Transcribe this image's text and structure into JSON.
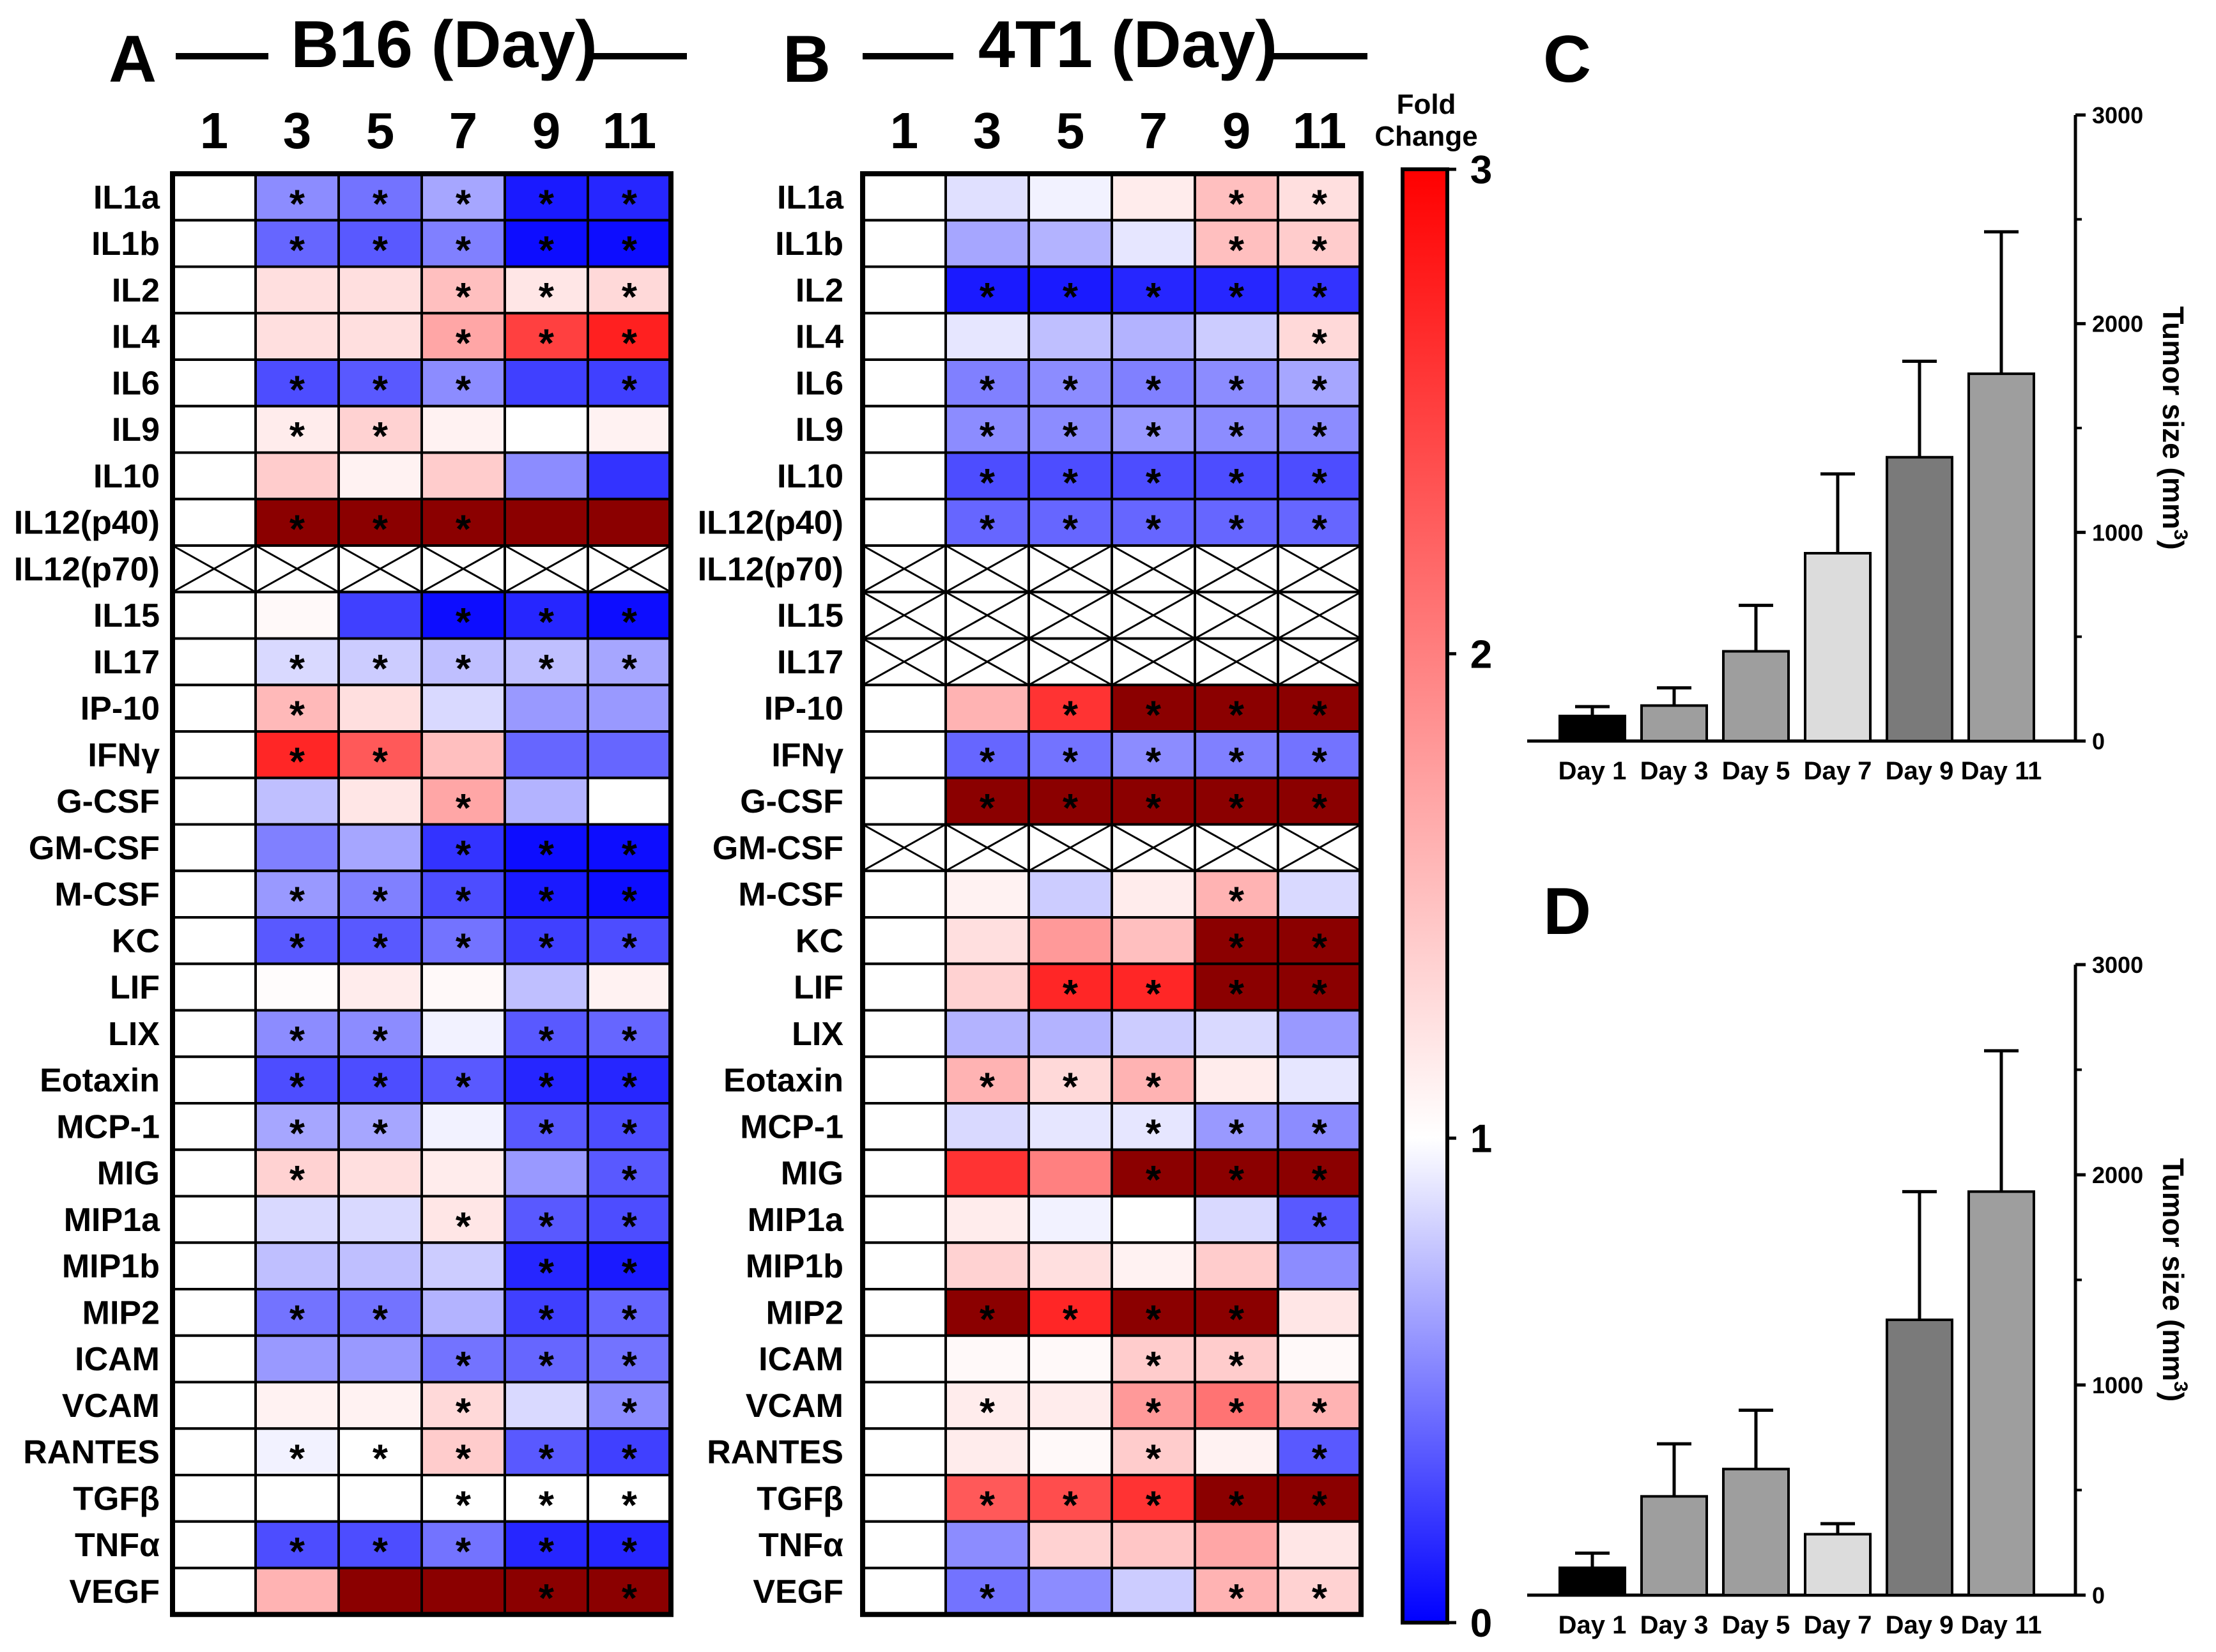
{
  "chart_data": [
    {
      "type": "heatmap",
      "panel": "A",
      "title": "B16 (Day)",
      "columns": [
        "1",
        "3",
        "5",
        "7",
        "9",
        "11"
      ],
      "rows": [
        "IL1a",
        "IL1b",
        "IL2",
        "IL4",
        "IL6",
        "IL9",
        "IL10",
        "IL12(p40)",
        "IL12(p70)",
        "IL15",
        "IL17",
        "IP-10",
        "IFNγ",
        "G-CSF",
        "GM-CSF",
        "M-CSF",
        "KC",
        "LIF",
        "LIX",
        "Eotaxin",
        "MCP-1",
        "MIG",
        "MIP1a",
        "MIP1b",
        "MIP2",
        "ICAM",
        "VCAM",
        "RANTES",
        "TGFβ",
        "TNFα",
        "VEGF"
      ],
      "values": [
        [
          1,
          0.55,
          0.45,
          0.65,
          0.1,
          0.15
        ],
        [
          1,
          0.4,
          0.35,
          0.5,
          0.05,
          0.05
        ],
        [
          1,
          1.25,
          1.25,
          1.5,
          1.2,
          1.3
        ],
        [
          1,
          1.25,
          1.25,
          1.7,
          2.5,
          2.75
        ],
        [
          1,
          0.3,
          0.35,
          0.55,
          0.25,
          0.25
        ],
        [
          1,
          1.15,
          1.35,
          1.1,
          1.0,
          1.1
        ],
        [
          1,
          1.4,
          1.1,
          1.4,
          0.55,
          0.2
        ],
        [
          1,
          3.2,
          3.2,
          3.2,
          3.2,
          3.2
        ],
        [
          null,
          null,
          null,
          null,
          null,
          null
        ],
        [
          1,
          1.05,
          0.25,
          0.05,
          0.15,
          0.05
        ],
        [
          1,
          0.85,
          0.8,
          0.75,
          0.75,
          0.65
        ],
        [
          1,
          1.55,
          1.25,
          0.85,
          0.6,
          0.6
        ],
        [
          1,
          2.7,
          2.3,
          1.5,
          0.4,
          0.4
        ],
        [
          1,
          0.75,
          1.2,
          1.7,
          0.7,
          1.0
        ],
        [
          1,
          0.5,
          0.65,
          0.2,
          0.05,
          0.05
        ],
        [
          1,
          0.6,
          0.5,
          0.3,
          0.1,
          0.05
        ],
        [
          1,
          0.35,
          0.35,
          0.45,
          0.25,
          0.3
        ],
        [
          1,
          1.02,
          1.15,
          1.05,
          0.75,
          1.1
        ],
        [
          1,
          0.55,
          0.55,
          0.95,
          0.35,
          0.4
        ],
        [
          1,
          0.3,
          0.3,
          0.35,
          0.15,
          0.15
        ],
        [
          1,
          0.65,
          0.65,
          0.95,
          0.35,
          0.3
        ],
        [
          1,
          1.35,
          1.25,
          1.15,
          0.6,
          0.35
        ],
        [
          1,
          0.85,
          0.85,
          1.2,
          0.35,
          0.3
        ],
        [
          1,
          0.75,
          0.75,
          0.8,
          0.15,
          0.1
        ],
        [
          1,
          0.45,
          0.45,
          0.7,
          0.25,
          0.4
        ],
        [
          1,
          0.6,
          0.6,
          0.45,
          0.4,
          0.45
        ],
        [
          1,
          1.1,
          1.1,
          1.3,
          0.85,
          0.55
        ],
        [
          1,
          0.95,
          1.0,
          1.4,
          0.35,
          0.25
        ],
        [
          1,
          1.0,
          1.0,
          1.0,
          1.0,
          1.0
        ],
        [
          1,
          0.3,
          0.3,
          0.45,
          0.15,
          0.15
        ],
        [
          1,
          1.6,
          3.2,
          3.2,
          3.2,
          3.2
        ]
      ],
      "significant": [
        [
          0,
          1,
          1,
          1,
          1,
          1
        ],
        [
          0,
          1,
          1,
          1,
          1,
          1
        ],
        [
          0,
          0,
          0,
          1,
          1,
          1
        ],
        [
          0,
          0,
          0,
          1,
          1,
          1
        ],
        [
          0,
          1,
          1,
          1,
          0,
          1
        ],
        [
          0,
          1,
          1,
          0,
          0,
          0
        ],
        [
          0,
          0,
          0,
          0,
          0,
          0
        ],
        [
          0,
          1,
          1,
          1,
          0,
          0
        ],
        [
          0,
          0,
          0,
          0,
          0,
          0
        ],
        [
          0,
          0,
          0,
          1,
          1,
          1
        ],
        [
          0,
          1,
          1,
          1,
          1,
          1
        ],
        [
          0,
          1,
          0,
          0,
          0,
          0
        ],
        [
          0,
          1,
          1,
          0,
          0,
          0
        ],
        [
          0,
          0,
          0,
          1,
          0,
          0
        ],
        [
          0,
          0,
          0,
          1,
          1,
          1
        ],
        [
          0,
          1,
          1,
          1,
          1,
          1
        ],
        [
          0,
          1,
          1,
          1,
          1,
          1
        ],
        [
          0,
          0,
          0,
          0,
          0,
          0
        ],
        [
          0,
          1,
          1,
          0,
          1,
          1
        ],
        [
          0,
          1,
          1,
          1,
          1,
          1
        ],
        [
          0,
          1,
          1,
          0,
          1,
          1
        ],
        [
          0,
          1,
          0,
          0,
          0,
          1
        ],
        [
          0,
          0,
          0,
          1,
          1,
          1
        ],
        [
          0,
          0,
          0,
          0,
          1,
          1
        ],
        [
          0,
          1,
          1,
          0,
          1,
          1
        ],
        [
          0,
          0,
          0,
          1,
          1,
          1
        ],
        [
          0,
          0,
          0,
          1,
          0,
          1
        ],
        [
          0,
          1,
          1,
          1,
          1,
          1
        ],
        [
          0,
          0,
          0,
          1,
          1,
          1
        ],
        [
          0,
          1,
          1,
          1,
          1,
          1
        ],
        [
          0,
          0,
          0,
          0,
          1,
          1
        ]
      ]
    },
    {
      "type": "heatmap",
      "panel": "B",
      "title": "4T1 (Day)",
      "columns": [
        "1",
        "3",
        "5",
        "7",
        "9",
        "11"
      ],
      "rows": [
        "IL1a",
        "IL1b",
        "IL2",
        "IL4",
        "IL6",
        "IL9",
        "IL10",
        "IL12(p40)",
        "IL12(p70)",
        "IL15",
        "IL17",
        "IP-10",
        "IFNγ",
        "G-CSF",
        "GM-CSF",
        "M-CSF",
        "KC",
        "LIF",
        "LIX",
        "Eotaxin",
        "MCP-1",
        "MIG",
        "MIP1a",
        "MIP1b",
        "MIP2",
        "ICAM",
        "VCAM",
        "RANTES",
        "TGFβ",
        "TNFα",
        "VEGF"
      ],
      "values": [
        [
          1,
          0.88,
          0.95,
          1.15,
          1.5,
          1.25
        ],
        [
          1,
          0.65,
          0.7,
          0.9,
          1.5,
          1.4
        ],
        [
          1,
          0.1,
          0.1,
          0.15,
          0.15,
          0.2
        ],
        [
          1,
          0.9,
          0.75,
          0.7,
          0.8,
          1.3
        ],
        [
          1,
          0.5,
          0.55,
          0.5,
          0.55,
          0.65
        ],
        [
          1,
          0.55,
          0.55,
          0.6,
          0.55,
          0.55
        ],
        [
          1,
          0.3,
          0.3,
          0.3,
          0.3,
          0.3
        ],
        [
          1,
          0.4,
          0.4,
          0.4,
          0.4,
          0.4
        ],
        [
          null,
          null,
          null,
          null,
          null,
          null
        ],
        [
          null,
          null,
          null,
          null,
          null,
          null
        ],
        [
          null,
          null,
          null,
          null,
          null,
          null
        ],
        [
          1,
          1.6,
          2.6,
          3.2,
          3.2,
          3.2
        ],
        [
          1,
          0.4,
          0.45,
          0.55,
          0.5,
          0.45
        ],
        [
          1,
          3.2,
          3.2,
          3.2,
          3.2,
          3.2
        ],
        [
          null,
          null,
          null,
          null,
          null,
          null
        ],
        [
          1,
          1.1,
          0.8,
          1.15,
          1.6,
          0.85
        ],
        [
          1,
          1.25,
          1.8,
          1.5,
          3.2,
          3.2
        ],
        [
          1,
          1.35,
          2.7,
          2.7,
          3.2,
          3.2
        ],
        [
          1,
          0.7,
          0.7,
          0.8,
          0.85,
          0.6
        ],
        [
          1,
          1.6,
          1.3,
          1.6,
          1.15,
          0.9
        ],
        [
          1,
          0.85,
          0.9,
          0.9,
          0.6,
          0.55
        ],
        [
          1,
          2.6,
          2.0,
          3.2,
          3.2,
          3.2
        ],
        [
          1,
          1.15,
          0.95,
          1.0,
          0.85,
          0.35
        ],
        [
          1,
          1.35,
          1.25,
          1.1,
          1.4,
          0.55
        ],
        [
          1,
          3.2,
          2.7,
          3.2,
          3.2,
          1.2
        ],
        [
          1,
          1.05,
          1.05,
          1.4,
          1.4,
          1.05
        ],
        [
          1,
          1.15,
          1.15,
          1.8,
          2.1,
          1.6
        ],
        [
          1,
          1.15,
          1.05,
          1.4,
          1.1,
          0.35
        ],
        [
          1,
          2.3,
          2.4,
          2.6,
          3.2,
          3.2
        ],
        [
          1,
          0.55,
          1.35,
          1.45,
          1.7,
          1.2
        ],
        [
          1,
          0.45,
          0.55,
          0.8,
          1.6,
          1.35
        ]
      ],
      "significant": [
        [
          0,
          0,
          0,
          0,
          1,
          1
        ],
        [
          0,
          0,
          0,
          0,
          1,
          1
        ],
        [
          0,
          1,
          1,
          1,
          1,
          1
        ],
        [
          0,
          0,
          0,
          0,
          0,
          1
        ],
        [
          0,
          1,
          1,
          1,
          1,
          1
        ],
        [
          0,
          1,
          1,
          1,
          1,
          1
        ],
        [
          0,
          1,
          1,
          1,
          1,
          1
        ],
        [
          0,
          1,
          1,
          1,
          1,
          1
        ],
        [
          0,
          0,
          0,
          0,
          0,
          0
        ],
        [
          0,
          0,
          0,
          0,
          0,
          0
        ],
        [
          0,
          0,
          0,
          0,
          0,
          0
        ],
        [
          0,
          0,
          1,
          1,
          1,
          1
        ],
        [
          0,
          1,
          1,
          1,
          1,
          1
        ],
        [
          0,
          1,
          1,
          1,
          1,
          1
        ],
        [
          0,
          0,
          0,
          0,
          0,
          0
        ],
        [
          0,
          0,
          0,
          0,
          1,
          0
        ],
        [
          0,
          0,
          0,
          0,
          1,
          1
        ],
        [
          0,
          0,
          1,
          1,
          1,
          1
        ],
        [
          0,
          0,
          0,
          0,
          0,
          0
        ],
        [
          0,
          1,
          1,
          1,
          0,
          0
        ],
        [
          0,
          0,
          0,
          1,
          1,
          1
        ],
        [
          0,
          0,
          0,
          1,
          1,
          1
        ],
        [
          0,
          0,
          0,
          0,
          0,
          1
        ],
        [
          0,
          0,
          0,
          0,
          0,
          0
        ],
        [
          0,
          1,
          1,
          1,
          1,
          0
        ],
        [
          0,
          0,
          0,
          1,
          1,
          0
        ],
        [
          0,
          1,
          0,
          1,
          1,
          1
        ],
        [
          0,
          0,
          0,
          1,
          0,
          1
        ],
        [
          0,
          1,
          1,
          1,
          1,
          1
        ],
        [
          0,
          0,
          0,
          0,
          0,
          0
        ],
        [
          0,
          1,
          0,
          0,
          1,
          1
        ]
      ]
    },
    {
      "type": "bar",
      "panel": "C",
      "categories": [
        "Day 1",
        "Day 3",
        "Day 5",
        "Day 7",
        "Day 9",
        "Day 11"
      ],
      "values": [
        120,
        170,
        430,
        900,
        1360,
        1760
      ],
      "errors": [
        45,
        85,
        220,
        380,
        460,
        680
      ],
      "colors": [
        "#000000",
        "#9e9e9e",
        "#9e9e9e",
        "#dcdcdc",
        "#7a7a7a",
        "#9e9e9e"
      ],
      "ylabel": "Tumor size (mm",
      "ylabel_sup": "3",
      "ylabel_close": ")",
      "ylim": [
        0,
        3000
      ],
      "yticks": [
        "0",
        "1000",
        "2000",
        "3000"
      ],
      "axis_side": "right"
    },
    {
      "type": "bar",
      "panel": "D",
      "categories": [
        "Day 1",
        "Day 3",
        "Day 5",
        "Day 7",
        "Day 9",
        "Day 11"
      ],
      "values": [
        130,
        470,
        600,
        290,
        1310,
        1920
      ],
      "errors": [
        70,
        250,
        280,
        50,
        610,
        670
      ],
      "colors": [
        "#000000",
        "#9e9e9e",
        "#9e9e9e",
        "#dcdcdc",
        "#7a7a7a",
        "#9e9e9e"
      ],
      "ylabel": "Tumor size (mm",
      "ylabel_sup": "3",
      "ylabel_close": ")",
      "ylim": [
        0,
        3000
      ],
      "yticks": [
        "0",
        "1000",
        "2000",
        "3000"
      ],
      "axis_side": "right"
    }
  ],
  "colorbar": {
    "title_line1": "Fold",
    "title_line2": "Change",
    "ticks": [
      "0",
      "1",
      "2",
      "3"
    ],
    "min": 0,
    "max": 3,
    "low_color": "#0000ff",
    "mid_color": "#ffffff",
    "high_color": "#ff0000",
    "over_color": "#8b0000"
  },
  "significance_marker": "*"
}
